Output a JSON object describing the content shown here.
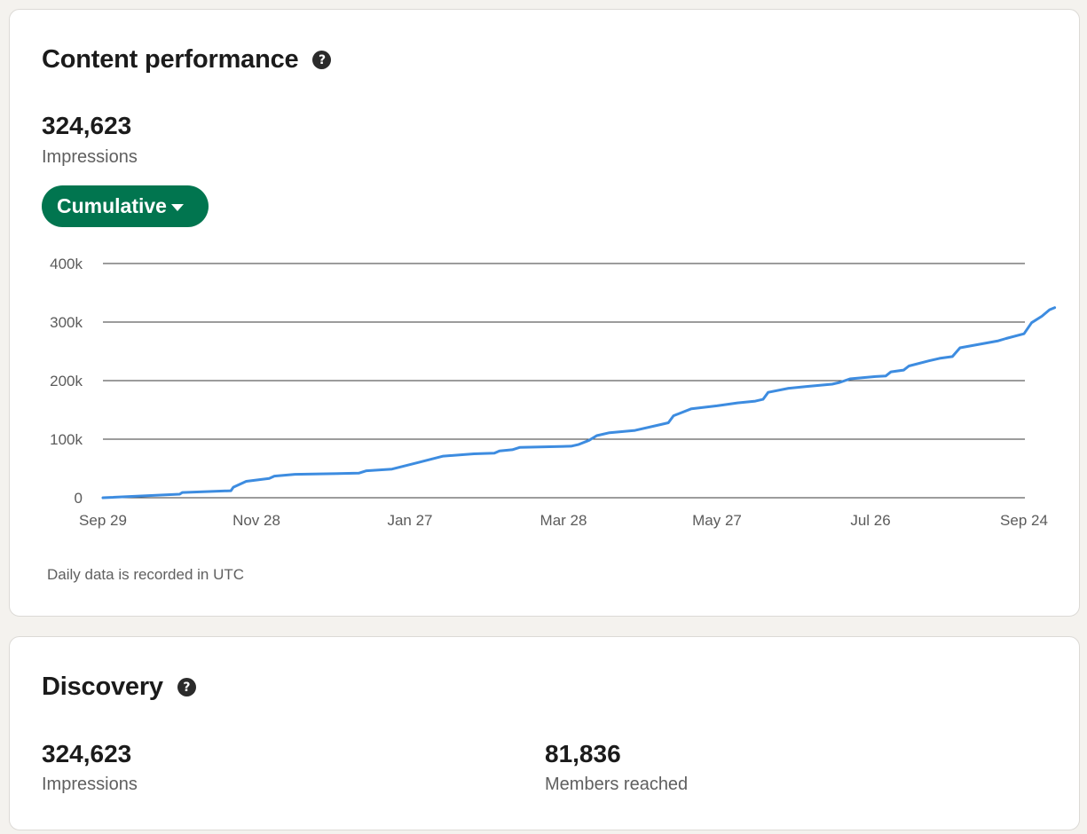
{
  "performance": {
    "title": "Content performance",
    "help_icon": "question-circle-icon",
    "impressions_value": "324,623",
    "impressions_label": "Impressions",
    "view_selector": "Cumulative",
    "footnote": "Daily data is recorded in UTC"
  },
  "discovery": {
    "title": "Discovery",
    "help_icon": "question-circle-icon",
    "impressions_value": "324,623",
    "impressions_label": "Impressions",
    "members_value": "81,836",
    "members_label": "Members reached"
  },
  "colors": {
    "page_bg": "#f4f2ee",
    "accent_green": "#01754f",
    "line_blue": "#3d8ce0"
  },
  "chart_data": {
    "type": "line",
    "title": "",
    "xlabel": "",
    "ylabel": "",
    "x_tick_labels": [
      "Sep 29",
      "Nov 28",
      "Jan 27",
      "Mar 28",
      "May 27",
      "Jul 26",
      "Sep 24"
    ],
    "y_tick_labels": [
      "0",
      "100k",
      "200k",
      "300k",
      "400k"
    ],
    "y_tick_values": [
      0,
      100000,
      200000,
      300000,
      400000
    ],
    "ylim": [
      0,
      400000
    ],
    "grid": true,
    "series": [
      {
        "values": [
          [
            0,
            0
          ],
          [
            30,
            6000
          ],
          [
            31,
            9000
          ],
          [
            50,
            12000
          ],
          [
            51,
            18000
          ],
          [
            56,
            28000
          ],
          [
            65,
            33000
          ],
          [
            67,
            37000
          ],
          [
            75,
            40000
          ],
          [
            100,
            42000
          ],
          [
            103,
            46000
          ],
          [
            113,
            49000
          ],
          [
            123,
            60000
          ],
          [
            133,
            71000
          ],
          [
            145,
            75000
          ],
          [
            153,
            76000
          ],
          [
            155,
            80000
          ],
          [
            160,
            82000
          ],
          [
            163,
            86000
          ],
          [
            183,
            88000
          ],
          [
            186,
            91000
          ],
          [
            190,
            98000
          ],
          [
            193,
            106000
          ],
          [
            198,
            111000
          ],
          [
            208,
            115000
          ],
          [
            218,
            125000
          ],
          [
            221,
            128000
          ],
          [
            223,
            140000
          ],
          [
            230,
            152000
          ],
          [
            240,
            157000
          ],
          [
            248,
            162000
          ],
          [
            255,
            165000
          ],
          [
            258,
            168000
          ],
          [
            260,
            180000
          ],
          [
            268,
            187000
          ],
          [
            275,
            190000
          ],
          [
            285,
            194000
          ],
          [
            288,
            197000
          ],
          [
            292,
            203000
          ],
          [
            302,
            207000
          ],
          [
            306,
            208000
          ],
          [
            308,
            215000
          ],
          [
            313,
            218000
          ],
          [
            315,
            225000
          ],
          [
            323,
            234000
          ],
          [
            327,
            238000
          ],
          [
            332,
            241000
          ],
          [
            335,
            256000
          ],
          [
            350,
            268000
          ],
          [
            353,
            272000
          ],
          [
            360,
            280000
          ],
          [
            363,
            299000
          ],
          [
            367,
            310000
          ],
          [
            370,
            321000
          ],
          [
            372,
            324623
          ]
        ]
      }
    ],
    "x_range": [
      "Sep 29",
      "Sep 24"
    ]
  }
}
